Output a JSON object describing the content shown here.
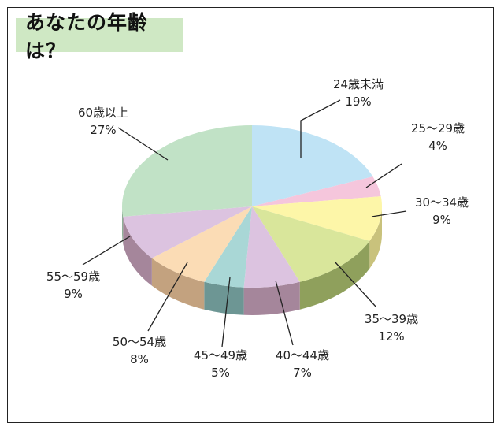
{
  "title": "あなたの年齢は？",
  "chart_data": {
    "type": "pie",
    "title": "あなたの年齢は？",
    "unit": "%",
    "categories": [
      "24歳未満",
      "25〜29歳",
      "30〜34歳",
      "35〜39歳",
      "40〜44歳",
      "45〜49歳",
      "50〜54歳",
      "55〜59歳",
      "60歳以上"
    ],
    "values": [
      19,
      4,
      9,
      12,
      7,
      5,
      8,
      9,
      27
    ],
    "labels": [
      "19%",
      "4%",
      "9%",
      "12%",
      "7%",
      "5%",
      "8%",
      "9%",
      "27%"
    ],
    "colors": [
      "#bfe3f5",
      "#f5c6dc",
      "#fdf6a8",
      "#d9e69b",
      "#dcc3e0",
      "#a9d7d6",
      "#fbdcb5",
      "#dcc3e0",
      "#c1e2c6"
    ],
    "side_colors": [
      "#8fb1c0",
      "#c29aab",
      "#c9c27c",
      "#8fa05c",
      "#a5869b",
      "#6d9694",
      "#c3a27f",
      "#a5869b",
      "#8fb098"
    ]
  }
}
